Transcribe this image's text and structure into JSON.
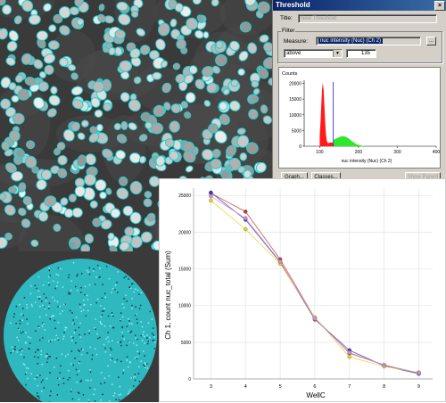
{
  "dialog": {
    "title": "Threshold",
    "close_glyph": "×",
    "title_label": "Title:",
    "title_value": "New Threshold",
    "filter_label": "Filter",
    "measure_label": "Measure:",
    "measure_value": "nuc intensity (Nuc) (Ch 2)",
    "browse_label": "...",
    "comparison": "above",
    "threshold_value": "135",
    "buttons": {
      "graph": "Graph...",
      "classes": "Classes...",
      "show_parent": "Show Parent"
    }
  },
  "histogram": {
    "counts_label": "Counts",
    "x_label": "nuc intensity (Nuc) (Ch 2)",
    "y_ticks": [
      "20000",
      "15000",
      "10000",
      "5000",
      "0"
    ],
    "x_ticks": [
      "100",
      "200",
      "300",
      "400"
    ],
    "threshold": 135,
    "colors": {
      "below": "#ff1b1b",
      "above": "#2ee82e",
      "threshold_line": "#2020c0"
    }
  },
  "chart_data": {
    "type": "line",
    "ylabel": "Ch 1, count nuc_total (Sum)",
    "xlabel": "WellC",
    "x": [
      3,
      4,
      5,
      6,
      7,
      8,
      9
    ],
    "ylim": [
      0,
      26000
    ],
    "y_ticks": [
      0,
      5000,
      10000,
      15000,
      20000,
      25000
    ],
    "grid": true,
    "series": [
      {
        "color": "#c0392b",
        "values": [
          25300,
          22800,
          16300,
          8300,
          3500,
          1900,
          800
        ]
      },
      {
        "color": "#2c3fa8",
        "values": [
          25400,
          21700,
          15900,
          8100,
          3900,
          1800,
          700
        ]
      },
      {
        "color": "#e8d020",
        "values": [
          24300,
          20400,
          15700,
          8400,
          3000,
          1700,
          900
        ]
      },
      {
        "color": "#d48ad8",
        "values": [
          24900,
          21900,
          16000,
          8200,
          3600,
          1900,
          800
        ]
      }
    ]
  }
}
